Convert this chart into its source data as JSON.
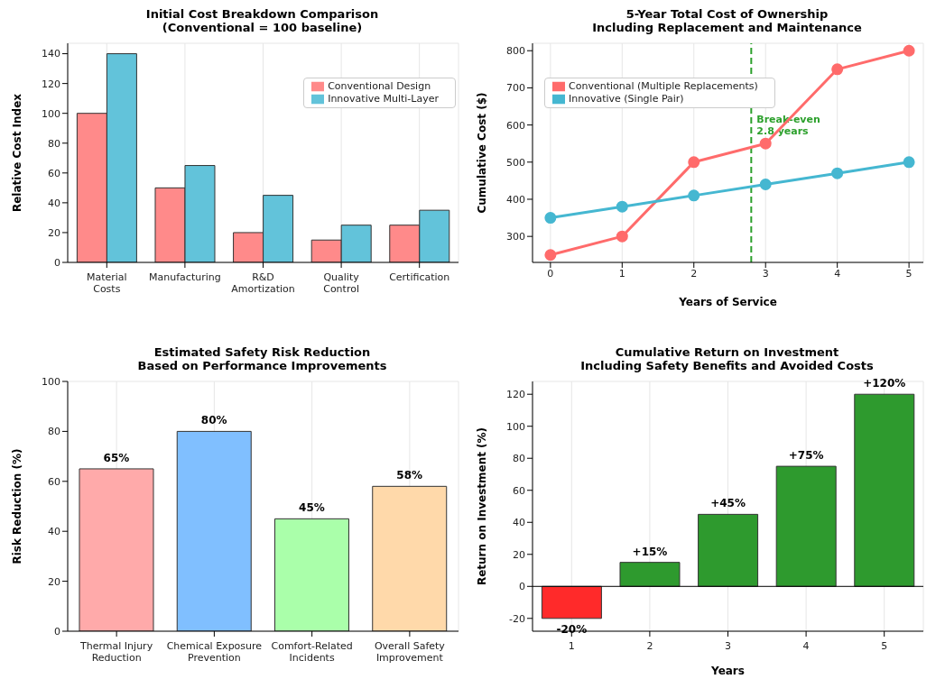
{
  "chart_data": [
    {
      "type": "bar",
      "title": "Initial Cost Breakdown Comparison\n(Conventional = 100 baseline)",
      "ylabel": "Relative Cost Index",
      "categories": [
        "Material\nCosts",
        "Manufacturing",
        "R&D\nAmortization",
        "Quality\nControl",
        "Certification"
      ],
      "series": [
        {
          "name": "Conventional Design",
          "color": "#ff8a8a",
          "values": [
            100,
            50,
            20,
            15,
            25
          ]
        },
        {
          "name": "Innovative Multi-Layer",
          "color": "#62c3da",
          "values": [
            140,
            65,
            45,
            25,
            35
          ]
        }
      ],
      "ylim": [
        0,
        147
      ],
      "yticks": [
        0,
        20,
        40,
        60,
        80,
        100,
        120,
        140
      ],
      "grid": true,
      "legend": "top right"
    },
    {
      "type": "line",
      "title": "5-Year Total Cost of Ownership\nIncluding Replacement and Maintenance",
      "xlabel": "Years of Service",
      "ylabel": "Cumulative Cost ($)",
      "x": [
        0,
        1,
        2,
        3,
        4,
        5
      ],
      "series": [
        {
          "name": "Conventional (Multiple Replacements)",
          "color": "#ff6b6b",
          "values": [
            250,
            300,
            500,
            550,
            750,
            800
          ]
        },
        {
          "name": "Innovative (Single Pair)",
          "color": "#45b7d1",
          "values": [
            350,
            380,
            410,
            440,
            470,
            500
          ]
        }
      ],
      "xlim": [
        -0.25,
        5.2
      ],
      "xticks": [
        0,
        1,
        2,
        3,
        4,
        5
      ],
      "ylim": [
        230,
        820
      ],
      "yticks": [
        300,
        400,
        500,
        600,
        700,
        800
      ],
      "grid": true,
      "legend": "top left",
      "marker": "circle",
      "line_style": "solid",
      "ref_lines": [
        {
          "axis": "x",
          "value": 2.8,
          "label": "Break-even\n2.8 years",
          "color": "#2ca02c",
          "line_style": "dashed"
        }
      ]
    },
    {
      "type": "bar",
      "title": "Estimated Safety Risk Reduction\nBased on Performance Improvements",
      "ylabel": "Risk Reduction (%)",
      "categories": [
        "Thermal Injury\nReduction",
        "Chemical Exposure\nPrevention",
        "Comfort-Related\nIncidents",
        "Overall Safety\nImprovement"
      ],
      "values": [
        65,
        80,
        45,
        58
      ],
      "colors": [
        "#ffaaaa",
        "#80bfff",
        "#aaffaa",
        "#ffd9aa"
      ],
      "value_labels": [
        "65%",
        "80%",
        "45%",
        "58%"
      ],
      "ylim": [
        0,
        100
      ],
      "yticks": [
        0,
        20,
        40,
        60,
        80,
        100
      ],
      "grid": true
    },
    {
      "type": "bar",
      "title": "Cumulative Return on Investment\nIncluding Safety Benefits and Avoided Costs",
      "xlabel": "Years",
      "ylabel": "Return on Investment (%)",
      "categories": [
        "1",
        "2",
        "3",
        "4",
        "5"
      ],
      "values": [
        -20,
        15,
        45,
        75,
        120
      ],
      "colors": [
        "#ff2a2a",
        "#2e9a2e",
        "#2e9a2e",
        "#2e9a2e",
        "#2e9a2e"
      ],
      "value_labels": [
        "-20%",
        "+15%",
        "+45%",
        "+75%",
        "+120%"
      ],
      "ylim": [
        -28,
        128
      ],
      "yticks": [
        -20,
        0,
        20,
        40,
        60,
        80,
        100,
        120
      ],
      "grid": true,
      "ref_lines": [
        {
          "axis": "y",
          "value": 0,
          "color": "#000000",
          "line_style": "solid"
        }
      ]
    }
  ]
}
